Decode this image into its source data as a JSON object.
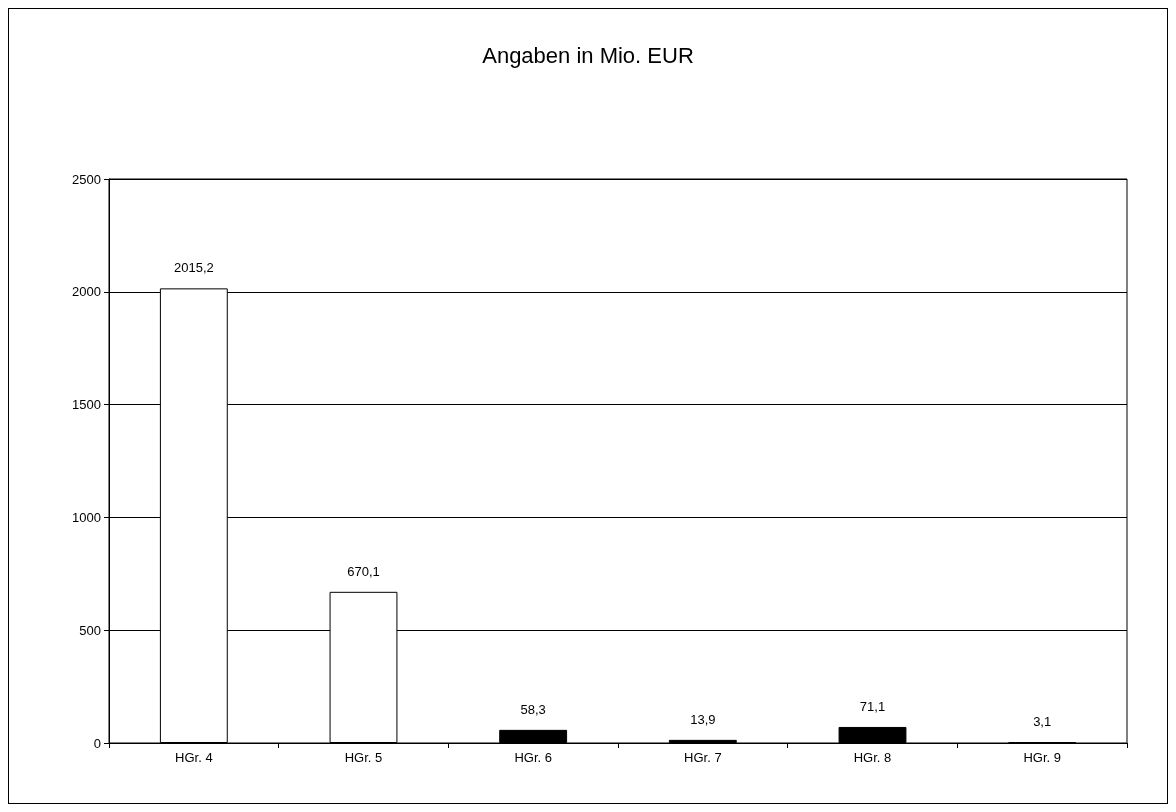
{
  "chart_data": {
    "type": "bar",
    "title": "Angaben in Mio. EUR",
    "categories": [
      "HGr. 4",
      "HGr. 5",
      "HGr. 6",
      "HGr. 7",
      "HGr. 8",
      "HGr. 9"
    ],
    "values": [
      2015.2,
      670.1,
      58.3,
      13.9,
      71.1,
      3.1
    ],
    "value_labels": [
      "2015,2",
      "670,1",
      "58,3",
      "13,9",
      "71,1",
      "3,1"
    ],
    "colors": [
      "#ffffff",
      "#ffffff",
      "#000000",
      "#000000",
      "#000000",
      "#000000"
    ],
    "ylim": [
      0,
      2500
    ],
    "yticks": [
      0,
      500,
      1000,
      1500,
      2000,
      2500
    ],
    "grid": "y"
  }
}
